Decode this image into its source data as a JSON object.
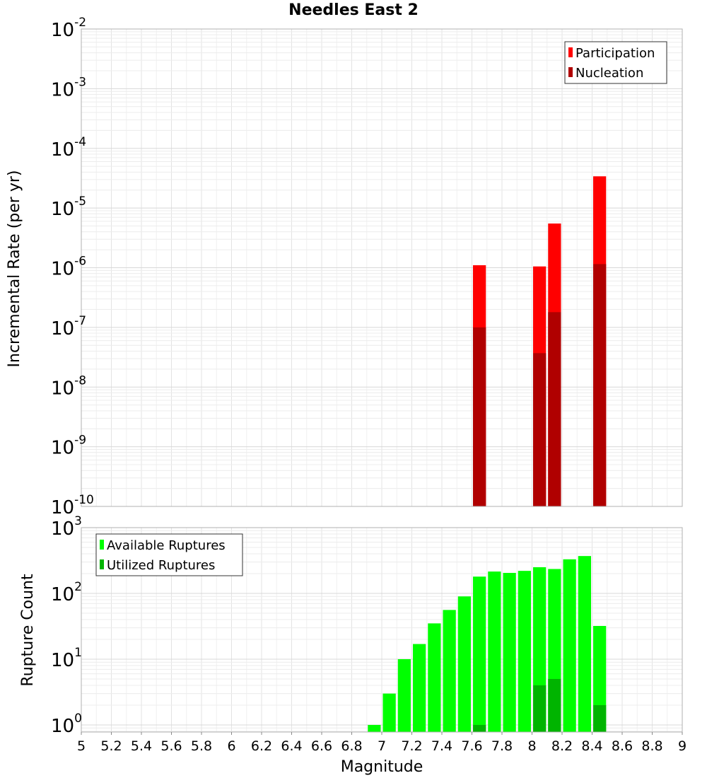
{
  "title": "Needles East 2",
  "chart_data": [
    {
      "type": "bar",
      "name": "incremental-rate",
      "ylabel": "Incremental Rate (per yr)",
      "yscale": "log",
      "ylim": [
        1e-10,
        0.01
      ],
      "xlim": [
        5,
        9
      ],
      "bin_width": 0.1,
      "grid": true,
      "legend_position": "top-right",
      "y_ticks": [
        {
          "base": "10",
          "exp": "-10",
          "value": 1e-10
        },
        {
          "base": "10",
          "exp": "-9",
          "value": 1e-09
        },
        {
          "base": "10",
          "exp": "-8",
          "value": 1e-08
        },
        {
          "base": "10",
          "exp": "-7",
          "value": 1e-07
        },
        {
          "base": "10",
          "exp": "-6",
          "value": 1e-06
        },
        {
          "base": "10",
          "exp": "-5",
          "value": 1e-05
        },
        {
          "base": "10",
          "exp": "-4",
          "value": 0.0001
        },
        {
          "base": "10",
          "exp": "-3",
          "value": 0.001
        },
        {
          "base": "10",
          "exp": "-2",
          "value": 0.01
        }
      ],
      "series": [
        {
          "name": "Participation",
          "color": "#ff0000",
          "points": [
            {
              "x": 7.65,
              "y": 1.1e-06
            },
            {
              "x": 8.05,
              "y": 1.05e-06
            },
            {
              "x": 8.15,
              "y": 5.5e-06
            },
            {
              "x": 8.45,
              "y": 3.4e-05
            }
          ]
        },
        {
          "name": "Nucleation",
          "color": "#b00000",
          "points": [
            {
              "x": 7.65,
              "y": 1e-07
            },
            {
              "x": 8.05,
              "y": 3.7e-08
            },
            {
              "x": 8.15,
              "y": 1.8e-07
            },
            {
              "x": 8.45,
              "y": 1.15e-06
            }
          ]
        }
      ]
    },
    {
      "type": "bar",
      "name": "rupture-count",
      "ylabel": "Rupture Count",
      "xlabel": "Magnitude",
      "yscale": "log",
      "ylim": [
        0.78,
        1000
      ],
      "xlim": [
        5,
        9
      ],
      "bin_width": 0.1,
      "grid": true,
      "legend_position": "top-left",
      "x_ticks": [
        "5",
        "5.2",
        "5.4",
        "5.6",
        "5.8",
        "6",
        "6.2",
        "6.4",
        "6.6",
        "6.8",
        "7",
        "7.2",
        "7.4",
        "7.6",
        "7.8",
        "8",
        "8.2",
        "8.4",
        "8.6",
        "8.8",
        "9"
      ],
      "y_ticks": [
        {
          "base": "10",
          "exp": "0",
          "value": 1
        },
        {
          "base": "10",
          "exp": "1",
          "value": 10
        },
        {
          "base": "10",
          "exp": "2",
          "value": 100
        },
        {
          "base": "10",
          "exp": "3",
          "value": 1000
        }
      ],
      "series": [
        {
          "name": "Available Ruptures",
          "color": "#00ff00",
          "points": [
            {
              "x": 6.95,
              "y": 1
            },
            {
              "x": 7.05,
              "y": 3
            },
            {
              "x": 7.15,
              "y": 10
            },
            {
              "x": 7.25,
              "y": 17
            },
            {
              "x": 7.35,
              "y": 35
            },
            {
              "x": 7.45,
              "y": 56
            },
            {
              "x": 7.55,
              "y": 90
            },
            {
              "x": 7.65,
              "y": 180
            },
            {
              "x": 7.75,
              "y": 215
            },
            {
              "x": 7.85,
              "y": 205
            },
            {
              "x": 7.95,
              "y": 220
            },
            {
              "x": 8.05,
              "y": 250
            },
            {
              "x": 8.15,
              "y": 235
            },
            {
              "x": 8.25,
              "y": 330
            },
            {
              "x": 8.35,
              "y": 370
            },
            {
              "x": 8.45,
              "y": 32
            }
          ]
        },
        {
          "name": "Utilized Ruptures",
          "color": "#00b400",
          "points": [
            {
              "x": 7.65,
              "y": 1
            },
            {
              "x": 8.05,
              "y": 4
            },
            {
              "x": 8.15,
              "y": 5
            },
            {
              "x": 8.45,
              "y": 2
            }
          ]
        }
      ]
    }
  ]
}
